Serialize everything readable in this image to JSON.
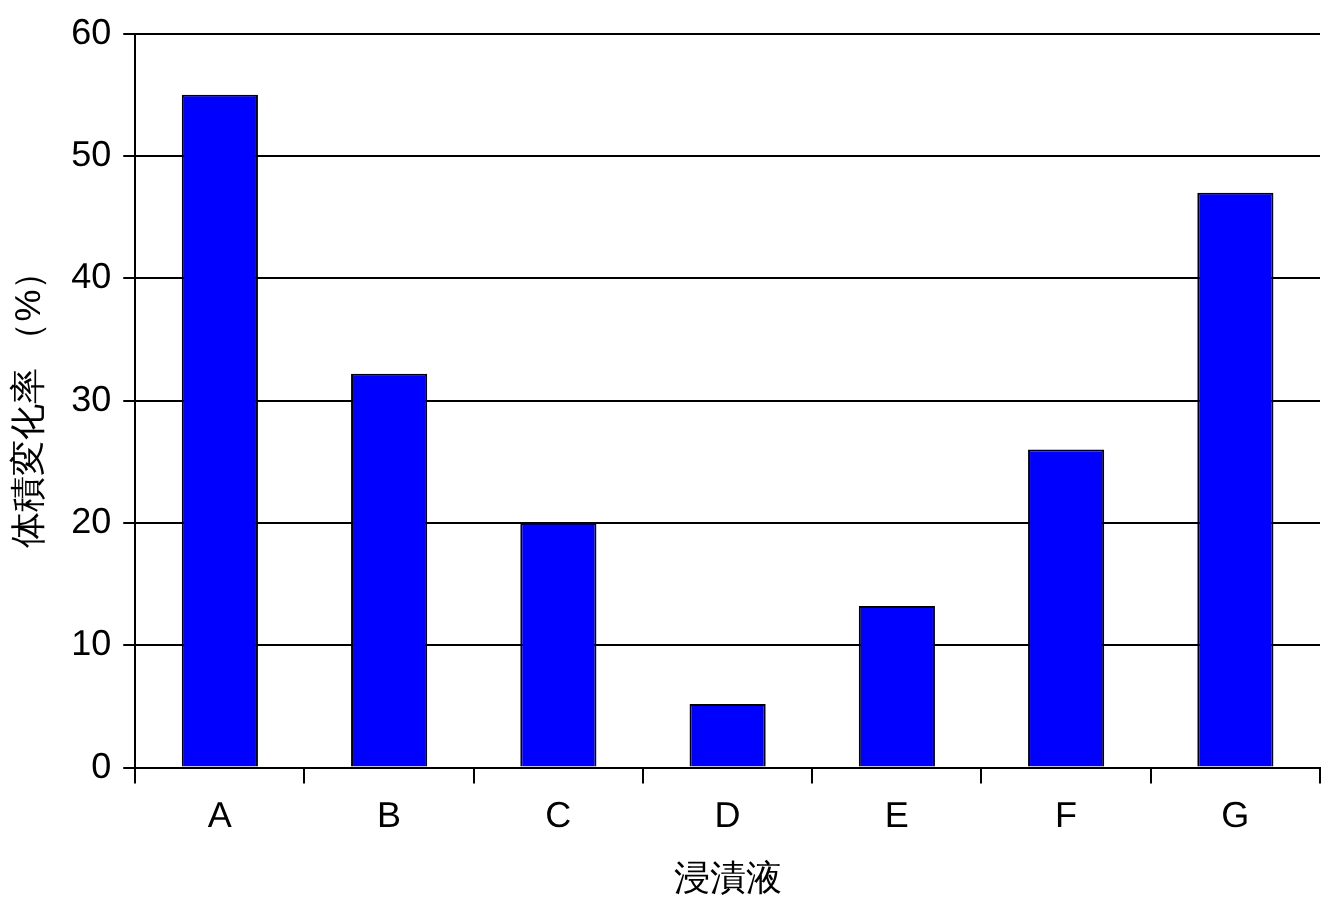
{
  "chart_data": {
    "type": "bar",
    "xlabel": "浸漬液",
    "ylabel": "体積変化率 （%）",
    "categories": [
      "A",
      "B",
      "C",
      "D",
      "E",
      "F",
      "G"
    ],
    "values": [
      55,
      32.2,
      20,
      5.2,
      13.2,
      26,
      47
    ],
    "color": "#0000ff",
    "ylim": [
      0,
      60
    ],
    "yticks": [
      0,
      10,
      20,
      30,
      40,
      50,
      60
    ],
    "grid": "y",
    "legend": false
  }
}
